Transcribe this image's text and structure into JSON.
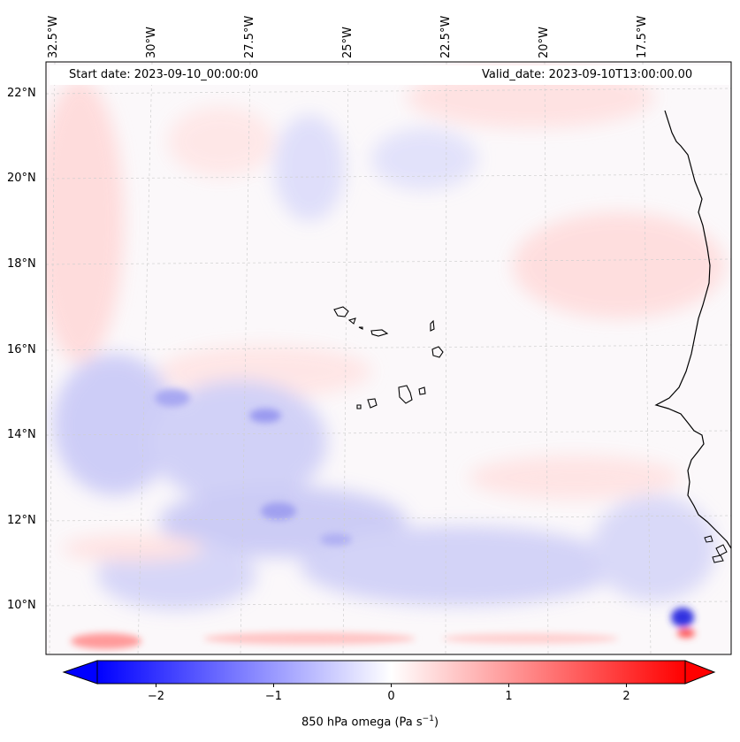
{
  "map": {
    "start_date": "Start date: 2023-09-10_00:00:00",
    "valid_date": "Valid_date: 2023-09-10T13:00:00.00",
    "lat_labels": [
      "22°N",
      "20°N",
      "18°N",
      "16°N",
      "14°N",
      "12°N",
      "10°N"
    ],
    "lon_labels": [
      "32.5°W",
      "30°W",
      "27.5°W",
      "25°W",
      "22.5°W",
      "20°W",
      "17.5°W"
    ],
    "coastline_color": "#000000",
    "field_colors": {
      "negative": "#0000ff",
      "zero": "#ffffff",
      "positive": "#ff0000"
    }
  },
  "colorbar": {
    "ticks": [
      "−2",
      "−1",
      "0",
      "1",
      "2"
    ],
    "tick_values": [
      -2,
      -1,
      0,
      1,
      2
    ],
    "range": [
      -2.5,
      2.5
    ],
    "label_main": "850 hPa omega (Pa s",
    "label_sup": "−1",
    "label_end": ")"
  }
}
